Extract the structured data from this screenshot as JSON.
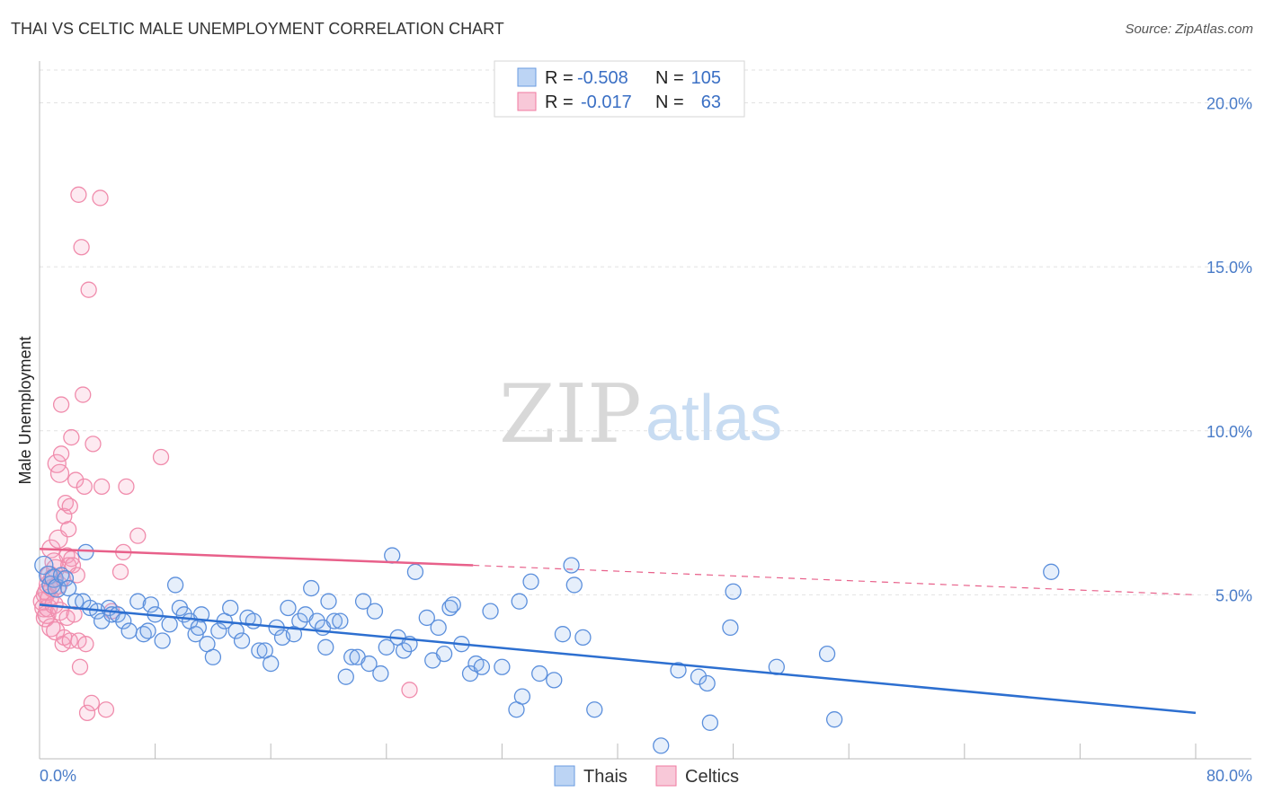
{
  "title": "THAI VS CELTIC MALE UNEMPLOYMENT CORRELATION CHART",
  "source": "Source: ZipAtlas.com",
  "watermark": {
    "zip": "ZIP",
    "atlas": "atlas"
  },
  "colors": {
    "thais": "#6a9be0",
    "celtics": "#f07aa0",
    "thais_line": "#2d6fd0",
    "celtics_line": "#e8608a",
    "tick": "#4a7cc8"
  },
  "legend_box": {
    "rows": [
      {
        "r_label": "R =",
        "r_value": "-0.508",
        "n_label": "N =",
        "n_value": "105"
      },
      {
        "r_label": "R =",
        "r_value": "-0.017",
        "n_label": "N =",
        "n_value": "63"
      }
    ]
  },
  "chart_data": {
    "type": "scatter",
    "title": "THAI VS CELTIC MALE UNEMPLOYMENT CORRELATION CHART",
    "xlabel": "",
    "ylabel": "Male Unemployment",
    "xlim": [
      0,
      80
    ],
    "ylim": [
      0,
      21
    ],
    "x_tick_labels": [
      "0.0%",
      "80.0%"
    ],
    "y_ticks": [
      5,
      10,
      15,
      20
    ],
    "y_tick_labels": [
      "5.0%",
      "10.0%",
      "15.0%",
      "20.0%"
    ],
    "grid": true,
    "legend_position": "bottom-center",
    "series": [
      {
        "name": "Thais",
        "r": -0.508,
        "n": 105,
        "trend": {
          "x": [
            0,
            80
          ],
          "y": [
            4.7,
            1.4
          ]
        },
        "points": [
          [
            0.3,
            5.9
          ],
          [
            0.6,
            5.6
          ],
          [
            0.8,
            5.3
          ],
          [
            1.0,
            5.5
          ],
          [
            1.2,
            5.2
          ],
          [
            1.5,
            5.6
          ],
          [
            1.8,
            5.5
          ],
          [
            2.0,
            5.2
          ],
          [
            2.5,
            4.8
          ],
          [
            3.0,
            4.8
          ],
          [
            3.2,
            6.3
          ],
          [
            3.5,
            4.6
          ],
          [
            4.0,
            4.5
          ],
          [
            4.3,
            4.2
          ],
          [
            4.8,
            4.6
          ],
          [
            5.0,
            4.4
          ],
          [
            5.4,
            4.4
          ],
          [
            5.8,
            4.2
          ],
          [
            6.2,
            3.9
          ],
          [
            6.8,
            4.8
          ],
          [
            7.2,
            3.8
          ],
          [
            7.7,
            4.7
          ],
          [
            8.0,
            4.4
          ],
          [
            8.5,
            3.6
          ],
          [
            9.0,
            4.1
          ],
          [
            9.4,
            5.3
          ],
          [
            9.7,
            4.6
          ],
          [
            10.0,
            4.4
          ],
          [
            10.4,
            4.2
          ],
          [
            10.8,
            3.8
          ],
          [
            11.2,
            4.4
          ],
          [
            11.6,
            3.5
          ],
          [
            12.0,
            3.1
          ],
          [
            12.4,
            3.9
          ],
          [
            12.8,
            4.2
          ],
          [
            13.2,
            4.6
          ],
          [
            13.6,
            3.9
          ],
          [
            14.0,
            3.6
          ],
          [
            14.4,
            4.3
          ],
          [
            14.8,
            4.2
          ],
          [
            15.2,
            3.3
          ],
          [
            15.6,
            3.3
          ],
          [
            16.0,
            2.9
          ],
          [
            16.4,
            4.0
          ],
          [
            16.8,
            3.7
          ],
          [
            17.2,
            4.6
          ],
          [
            17.6,
            3.8
          ],
          [
            18.0,
            4.2
          ],
          [
            18.4,
            4.4
          ],
          [
            18.8,
            5.2
          ],
          [
            19.2,
            4.2
          ],
          [
            19.6,
            4.0
          ],
          [
            20.0,
            4.8
          ],
          [
            20.4,
            4.2
          ],
          [
            20.8,
            4.2
          ],
          [
            21.2,
            2.5
          ],
          [
            21.6,
            3.1
          ],
          [
            22.0,
            3.1
          ],
          [
            22.4,
            4.8
          ],
          [
            22.8,
            2.9
          ],
          [
            23.2,
            4.5
          ],
          [
            23.6,
            2.6
          ],
          [
            24.0,
            3.4
          ],
          [
            24.4,
            6.2
          ],
          [
            24.8,
            3.7
          ],
          [
            25.2,
            3.3
          ],
          [
            25.6,
            3.5
          ],
          [
            26.0,
            5.7
          ],
          [
            26.8,
            4.3
          ],
          [
            27.2,
            3.0
          ],
          [
            27.6,
            4.0
          ],
          [
            28.0,
            3.2
          ],
          [
            28.4,
            4.6
          ],
          [
            28.6,
            4.7
          ],
          [
            29.2,
            3.5
          ],
          [
            29.8,
            2.6
          ],
          [
            30.2,
            2.9
          ],
          [
            30.6,
            2.8
          ],
          [
            31.2,
            4.5
          ],
          [
            32.0,
            2.8
          ],
          [
            33.0,
            1.5
          ],
          [
            33.2,
            4.8
          ],
          [
            33.4,
            1.9
          ],
          [
            34.0,
            5.4
          ],
          [
            34.6,
            2.6
          ],
          [
            35.6,
            2.4
          ],
          [
            36.2,
            3.8
          ],
          [
            36.8,
            5.9
          ],
          [
            37.0,
            5.3
          ],
          [
            37.6,
            3.7
          ],
          [
            38.4,
            1.5
          ],
          [
            43.0,
            0.4
          ],
          [
            44.2,
            2.7
          ],
          [
            45.6,
            2.5
          ],
          [
            46.2,
            2.3
          ],
          [
            46.4,
            1.1
          ],
          [
            47.8,
            4.0
          ],
          [
            48.0,
            5.1
          ],
          [
            51.0,
            2.8
          ],
          [
            54.5,
            3.2
          ],
          [
            55.0,
            1.2
          ],
          [
            70.0,
            5.7
          ],
          [
            7.5,
            3.9
          ],
          [
            11.0,
            4.0
          ],
          [
            19.8,
            3.4
          ]
        ]
      },
      {
        "name": "Celtics",
        "r": -0.017,
        "n": 63,
        "trend": {
          "x": [
            0,
            30
          ],
          "y": [
            6.4,
            5.9
          ],
          "dashed_to": {
            "x": 80,
            "y": 5.0
          }
        },
        "points": [
          [
            0.2,
            4.8
          ],
          [
            0.3,
            4.6
          ],
          [
            0.4,
            4.3
          ],
          [
            0.4,
            5.0
          ],
          [
            0.5,
            4.4
          ],
          [
            0.5,
            5.1
          ],
          [
            0.6,
            4.6
          ],
          [
            0.6,
            5.3
          ],
          [
            0.7,
            4.9
          ],
          [
            0.7,
            5.6
          ],
          [
            0.8,
            4.0
          ],
          [
            0.8,
            6.4
          ],
          [
            0.9,
            5.2
          ],
          [
            0.9,
            5.5
          ],
          [
            1.0,
            4.7
          ],
          [
            1.0,
            6.0
          ],
          [
            1.1,
            5.8
          ],
          [
            1.1,
            3.9
          ],
          [
            1.2,
            9.0
          ],
          [
            1.3,
            5.3
          ],
          [
            1.3,
            6.7
          ],
          [
            1.4,
            8.7
          ],
          [
            1.4,
            4.5
          ],
          [
            1.5,
            10.8
          ],
          [
            1.5,
            9.3
          ],
          [
            1.6,
            3.5
          ],
          [
            1.6,
            5.5
          ],
          [
            1.7,
            3.7
          ],
          [
            1.7,
            7.4
          ],
          [
            1.8,
            7.8
          ],
          [
            1.9,
            6.2
          ],
          [
            1.9,
            4.3
          ],
          [
            2.0,
            5.9
          ],
          [
            2.0,
            7.0
          ],
          [
            2.1,
            7.7
          ],
          [
            2.1,
            3.6
          ],
          [
            2.2,
            9.8
          ],
          [
            2.2,
            6.1
          ],
          [
            2.3,
            5.9
          ],
          [
            2.4,
            4.4
          ],
          [
            2.5,
            8.5
          ],
          [
            2.6,
            5.6
          ],
          [
            2.7,
            17.2
          ],
          [
            2.7,
            3.6
          ],
          [
            2.8,
            2.8
          ],
          [
            2.9,
            15.6
          ],
          [
            3.0,
            11.1
          ],
          [
            3.1,
            8.3
          ],
          [
            3.2,
            3.5
          ],
          [
            3.3,
            1.4
          ],
          [
            3.4,
            14.3
          ],
          [
            3.6,
            1.7
          ],
          [
            3.7,
            9.6
          ],
          [
            4.2,
            17.1
          ],
          [
            4.3,
            8.3
          ],
          [
            4.6,
            1.5
          ],
          [
            5.0,
            4.5
          ],
          [
            5.6,
            5.7
          ],
          [
            5.8,
            6.3
          ],
          [
            6.0,
            8.3
          ],
          [
            6.8,
            6.8
          ],
          [
            8.4,
            9.2
          ],
          [
            25.6,
            2.1
          ]
        ]
      }
    ]
  }
}
